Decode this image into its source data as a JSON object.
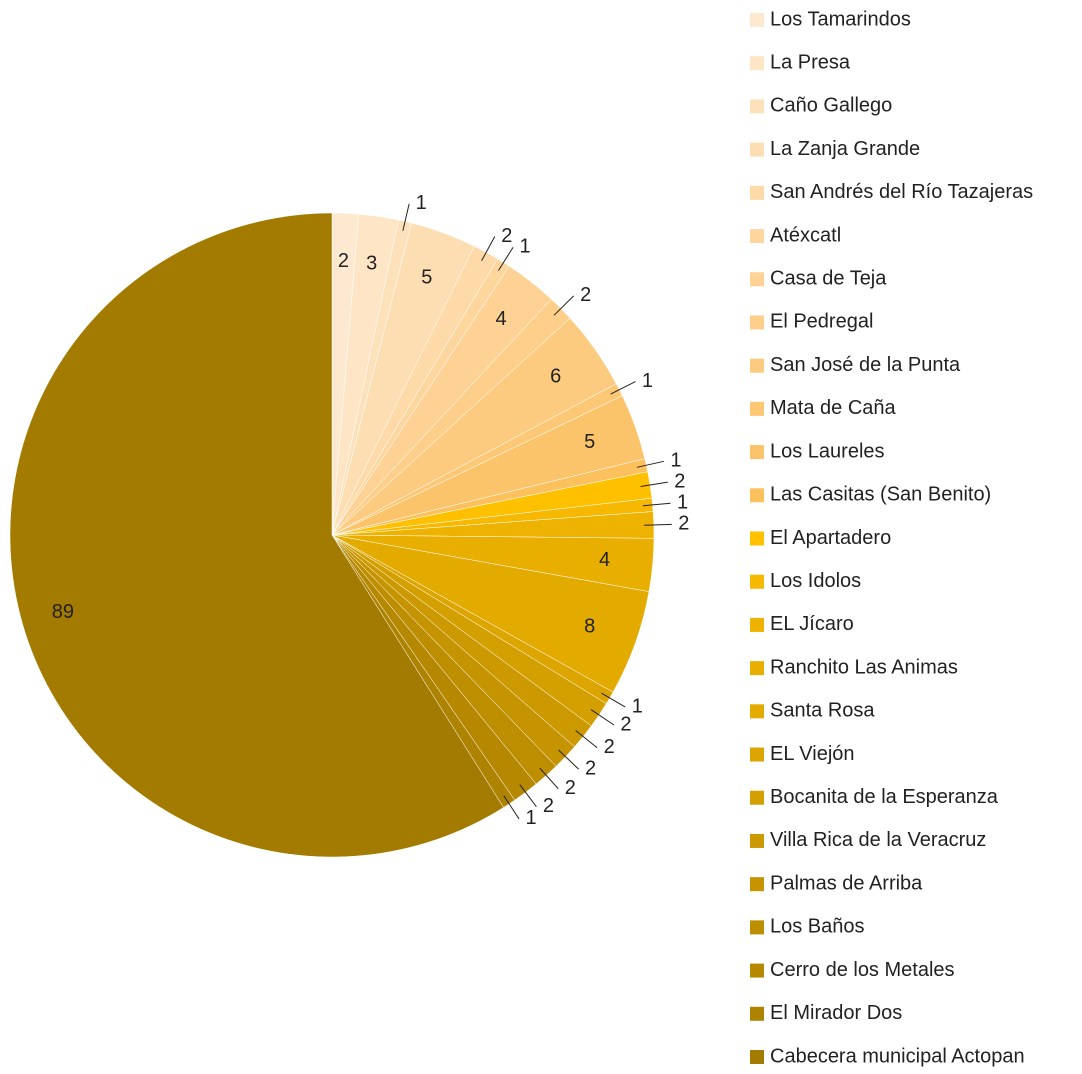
{
  "chart_data": {
    "type": "pie",
    "categories": [
      "Los Tamarindos",
      "La Presa",
      "Caño Gallego",
      "La Zanja Grande",
      "San Andrés del Río Tazajeras",
      "Atéxcatl",
      "Casa de Teja",
      "El Pedregal",
      "San José de la Punta",
      "Mata de Caña",
      "Los Laureles",
      "Las Casitas (San Benito)",
      "El Apartadero",
      "Los Idolos",
      "EL Jícaro",
      "Ranchito Las Animas",
      "Santa Rosa",
      "EL Viejón",
      "Bocanita de la Esperanza",
      "Villa Rica de la Veracruz",
      "Palmas de Arriba",
      "Los Baños",
      "Cerro de los Metales",
      "El Mirador Dos",
      "Cabecera municipal Actopan"
    ],
    "values": [
      2,
      3,
      1,
      5,
      2,
      1,
      4,
      2,
      6,
      1,
      5,
      1,
      2,
      1,
      2,
      4,
      8,
      1,
      2,
      2,
      2,
      2,
      2,
      1,
      89
    ],
    "colors": [
      "#fde9d0",
      "#fde5c5",
      "#fde1bb",
      "#fddeb3",
      "#fddaa8",
      "#fdd69e",
      "#fdd294",
      "#fdcf8a",
      "#fdcb80",
      "#fdc876",
      "#fcc46a",
      "#fcc05c",
      "#ffc000",
      "#f6b800",
      "#eeb200",
      "#e8ae00",
      "#e3aa00",
      "#dca500",
      "#d4a000",
      "#cc9900",
      "#c59400",
      "#bd8e00",
      "#b58800",
      "#ad8300",
      "#a37b00"
    ],
    "legend": "right"
  }
}
